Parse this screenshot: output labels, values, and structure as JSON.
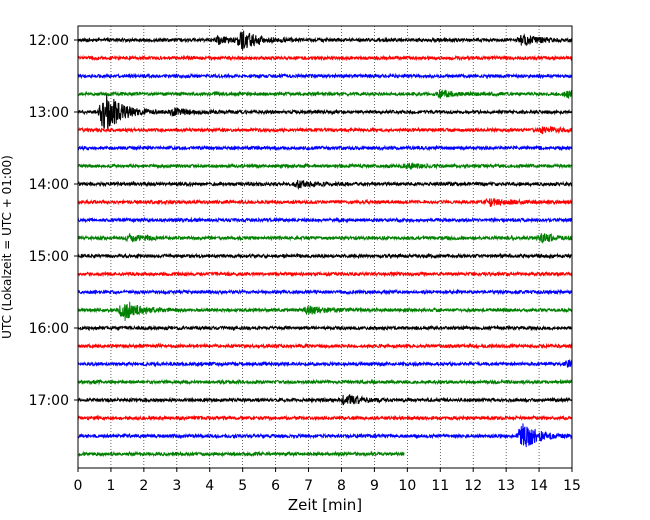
{
  "chart_data": {
    "type": "line",
    "title": "",
    "xlabel": "Zeit  [min]",
    "ylabel": "UTC (Lokalzeit = UTC + 01:00)",
    "xlim": [
      0,
      15
    ],
    "x_ticks": [
      "0",
      "1",
      "2",
      "3",
      "4",
      "5",
      "6",
      "7",
      "8",
      "9",
      "10",
      "11",
      "12",
      "13",
      "14",
      "15"
    ],
    "y_time_ticks": [
      "12:00",
      "13:00",
      "14:00",
      "15:00",
      "16:00",
      "17:00"
    ],
    "row_interval_minutes": 15,
    "grid_x": "dotted",
    "color_cycle": [
      "#000000",
      "#ff0000",
      "#0000ff",
      "#008000"
    ],
    "series": [
      {
        "start": "12:00",
        "end_min": 15,
        "events": [
          {
            "at": 5.0,
            "amp": 9
          },
          {
            "at": 4.3,
            "amp": 4
          },
          {
            "at": 13.5,
            "amp": 5
          }
        ]
      },
      {
        "start": "12:15",
        "end_min": 15,
        "events": []
      },
      {
        "start": "12:30",
        "end_min": 15,
        "events": []
      },
      {
        "start": "12:45",
        "end_min": 15,
        "events": [
          {
            "at": 11.0,
            "amp": 3
          },
          {
            "at": 14.9,
            "amp": 3
          }
        ]
      },
      {
        "start": "13:00",
        "end_min": 15,
        "events": [
          {
            "at": 0.8,
            "amp": 22
          },
          {
            "at": 2.9,
            "amp": 4
          }
        ]
      },
      {
        "start": "13:15",
        "end_min": 15,
        "events": [
          {
            "at": 14.1,
            "amp": 3
          }
        ]
      },
      {
        "start": "13:30",
        "end_min": 15,
        "events": []
      },
      {
        "start": "13:45",
        "end_min": 15,
        "events": [
          {
            "at": 10.0,
            "amp": 2
          }
        ]
      },
      {
        "start": "14:00",
        "end_min": 15,
        "events": [
          {
            "at": 6.7,
            "amp": 3
          }
        ]
      },
      {
        "start": "14:15",
        "end_min": 15,
        "events": [
          {
            "at": 12.5,
            "amp": 4
          }
        ]
      },
      {
        "start": "14:30",
        "end_min": 15,
        "events": []
      },
      {
        "start": "14:45",
        "end_min": 15,
        "events": [
          {
            "at": 14.1,
            "amp": 4
          },
          {
            "at": 1.6,
            "amp": 3
          }
        ]
      },
      {
        "start": "15:00",
        "end_min": 15,
        "events": []
      },
      {
        "start": "15:15",
        "end_min": 15,
        "events": []
      },
      {
        "start": "15:30",
        "end_min": 15,
        "events": []
      },
      {
        "start": "15:45",
        "end_min": 15,
        "events": [
          {
            "at": 1.4,
            "amp": 10
          },
          {
            "at": 7.0,
            "amp": 4
          }
        ]
      },
      {
        "start": "16:00",
        "end_min": 15,
        "events": []
      },
      {
        "start": "16:15",
        "end_min": 15,
        "events": []
      },
      {
        "start": "16:30",
        "end_min": 15,
        "events": [
          {
            "at": 14.9,
            "amp": 4
          }
        ]
      },
      {
        "start": "16:45",
        "end_min": 15,
        "events": []
      },
      {
        "start": "17:00",
        "end_min": 15,
        "events": [
          {
            "at": 8.1,
            "amp": 5
          }
        ]
      },
      {
        "start": "17:15",
        "end_min": 15,
        "events": []
      },
      {
        "start": "17:30",
        "end_min": 15,
        "events": [
          {
            "at": 13.5,
            "amp": 13
          }
        ]
      },
      {
        "start": "17:45",
        "end_min": 9.9,
        "events": []
      }
    ]
  }
}
